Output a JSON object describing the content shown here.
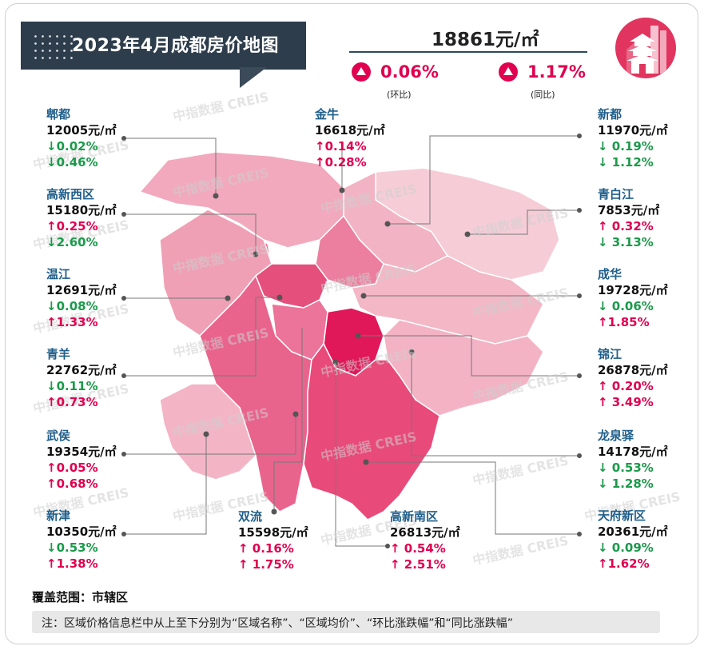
{
  "header": {
    "title": "2023年4月成都房价地图",
    "overall_price": "18861元/㎡",
    "mom": {
      "value": "0.06%",
      "caption": "(环比)"
    },
    "yoy": {
      "value": "1.17%",
      "caption": "(同比)"
    }
  },
  "watermark": "中指数据 CREIS",
  "districts": [
    {
      "name": "郫都",
      "price": "12005元/㎡",
      "mom": "↓0.02%",
      "mom_dir": "down",
      "yoy": "↓0.46%",
      "yoy_dir": "down"
    },
    {
      "name": "高新西区",
      "price": "15180元/㎡",
      "mom": "↑0.25%",
      "mom_dir": "up",
      "yoy": "↓2.60%",
      "yoy_dir": "down"
    },
    {
      "name": "温江",
      "price": "12691元/㎡",
      "mom": "↓0.08%",
      "mom_dir": "down",
      "yoy": "↑1.33%",
      "yoy_dir": "up"
    },
    {
      "name": "青羊",
      "price": "22762元/㎡",
      "mom": "↓0.11%",
      "mom_dir": "down",
      "yoy": "↑0.73%",
      "yoy_dir": "up"
    },
    {
      "name": "武侯",
      "price": "19354元/㎡",
      "mom": "↑0.05%",
      "mom_dir": "up",
      "yoy": "↑0.68%",
      "yoy_dir": "up"
    },
    {
      "name": "新津",
      "price": "10350元/㎡",
      "mom": "↓0.53%",
      "mom_dir": "down",
      "yoy": "↑1.38%",
      "yoy_dir": "up"
    },
    {
      "name": "金牛",
      "price": "16618元/㎡",
      "mom": "↑0.14%",
      "mom_dir": "up",
      "yoy": "↑0.28%",
      "yoy_dir": "up"
    },
    {
      "name": "双流",
      "price": "15598元/㎡",
      "mom": "↑ 0.16%",
      "mom_dir": "up",
      "yoy": "↑ 1.75%",
      "yoy_dir": "up"
    },
    {
      "name": "高新南区",
      "price": "26813元/㎡",
      "mom": "↑ 0.54%",
      "mom_dir": "up",
      "yoy": "↑ 2.51%",
      "yoy_dir": "up"
    },
    {
      "name": "新都",
      "price": "11970元/㎡",
      "mom": "↓ 0.19%",
      "mom_dir": "down",
      "yoy": "↓ 1.12%",
      "yoy_dir": "down"
    },
    {
      "name": "青白江",
      "price": "7853元/㎡",
      "mom": "↑ 0.32%",
      "mom_dir": "up",
      "yoy": "↓ 3.13%",
      "yoy_dir": "down"
    },
    {
      "name": "成华",
      "price": "19728元/㎡",
      "mom": "↓ 0.06%",
      "mom_dir": "down",
      "yoy": "↑1.85%",
      "yoy_dir": "up"
    },
    {
      "name": "锦江",
      "price": "26878元/㎡",
      "mom": "↑ 0.20%",
      "mom_dir": "up",
      "yoy": "↑ 3.49%",
      "yoy_dir": "up"
    },
    {
      "name": "龙泉驿",
      "price": "14178元/㎡",
      "mom": "↓ 0.53%",
      "mom_dir": "down",
      "yoy": "↓ 1.28%",
      "yoy_dir": "down"
    },
    {
      "name": "天府新区",
      "price": "20361元/㎡",
      "mom": "↓ 0.09%",
      "mom_dir": "down",
      "yoy": "↑1.62%",
      "yoy_dir": "up"
    }
  ],
  "colors": {
    "up": "#e0004f",
    "down": "#1a9a4a",
    "banner": "#2e3d4c",
    "name": "#1f5e8a"
  },
  "footer": {
    "coverage": "覆盖范围：市辖区",
    "note": "注：区域价格信息栏中从上至下分别为“区域名称”、“区域均价”、“环比涨跌幅”和“同比涨跌幅”"
  }
}
